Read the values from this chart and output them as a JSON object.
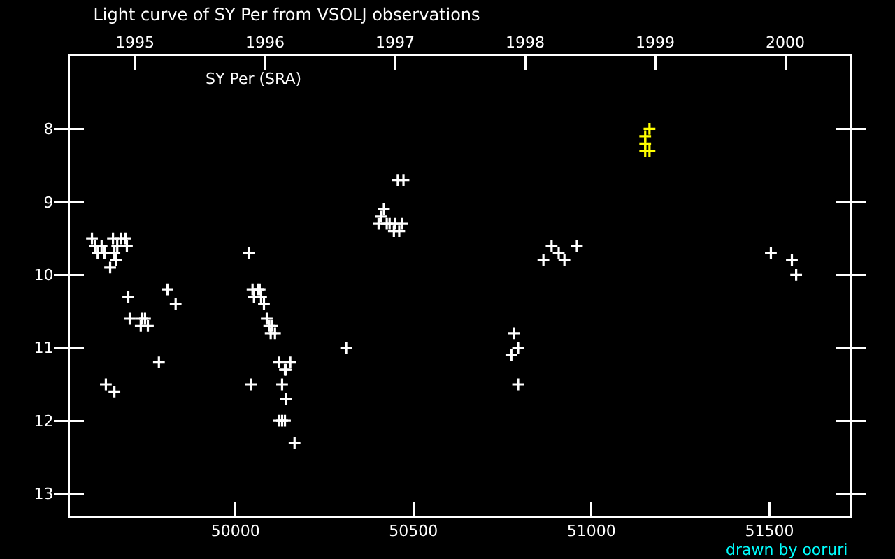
{
  "chart_data": {
    "type": "scatter",
    "title": "Light curve of SY Per from VSOLJ observations",
    "annotations": [
      "SY Per (SRA)",
      "drawn by ooruri"
    ],
    "marker": "cross",
    "grid": false,
    "xlim": [
      49535,
      51727
    ],
    "xticks": [
      50000,
      50500,
      51000,
      51500
    ],
    "x2lim": [
      1994.5,
      2000.5
    ],
    "x2ticks": [
      1995,
      1996,
      1997,
      1998,
      1999,
      2000
    ],
    "ylim": [
      13.3,
      7.0
    ],
    "yticks": [
      8,
      9,
      10,
      11,
      12,
      13
    ],
    "series": [
      {
        "color": "#ffffff",
        "x": [
          49597,
          49656,
          49679,
          49691,
          49605,
          49624,
          49668,
          49695,
          49613,
          49632,
          49660,
          49664,
          49648,
          50037,
          49809,
          49699,
          49832,
          49703,
          49738,
          49746,
          49734,
          49754,
          49785,
          49636,
          49660,
          50048,
          50064,
          50068,
          50052,
          50072,
          50080,
          50088,
          50095,
          50103,
          50099,
          50111,
          50311,
          50123,
          50154,
          50139,
          50142,
          50044,
          50131,
          50142,
          50123,
          50131,
          50139,
          50166,
          50456,
          50472,
          50417,
          50409,
          50402,
          50425,
          50433,
          50448,
          50468,
          50445,
          50460,
          50888,
          50959,
          50908,
          50865,
          50924,
          50782,
          50794,
          50775,
          50794,
          51504,
          51563,
          51575
        ],
        "values": [
          9.5,
          9.5,
          9.5,
          9.5,
          9.6,
          9.6,
          9.6,
          9.6,
          9.7,
          9.7,
          9.7,
          9.8,
          9.9,
          9.7,
          10.2,
          10.3,
          10.4,
          10.6,
          10.6,
          10.6,
          10.7,
          10.7,
          11.2,
          11.5,
          11.6,
          10.2,
          10.2,
          10.2,
          10.3,
          10.3,
          10.4,
          10.6,
          10.7,
          10.7,
          10.8,
          10.8,
          11.0,
          11.2,
          11.2,
          11.3,
          11.3,
          11.5,
          11.5,
          11.7,
          12.0,
          12.0,
          12.0,
          12.3,
          8.7,
          8.7,
          9.1,
          9.2,
          9.3,
          9.3,
          9.3,
          9.3,
          9.3,
          9.4,
          9.4,
          9.6,
          9.6,
          9.7,
          9.8,
          9.8,
          10.8,
          11.0,
          11.1,
          11.5,
          9.7,
          9.8,
          10.0
        ]
      },
      {
        "color": "#ffff00",
        "x": [
          51163,
          51151,
          51151,
          51151,
          51163
        ],
        "values": [
          8.0,
          8.1,
          8.2,
          8.3,
          8.3
        ]
      }
    ]
  }
}
